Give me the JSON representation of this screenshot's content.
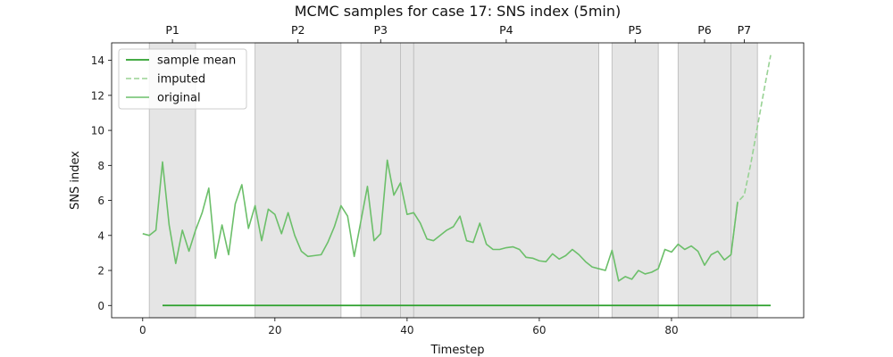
{
  "chart_data": {
    "type": "line",
    "title": "MCMC samples for case 17: SNS index (5min)",
    "xlabel": "Timestep",
    "ylabel": "SNS index",
    "xlim": [
      -4.7,
      100
    ],
    "ylim": [
      -0.7,
      15.0
    ],
    "xticks": [
      0,
      20,
      40,
      60,
      80
    ],
    "yticks": [
      0,
      2,
      4,
      6,
      8,
      10,
      12,
      14
    ],
    "grid": false,
    "legend_position": "top-left",
    "periods": [
      {
        "label": "P1",
        "start": 1,
        "end": 8
      },
      {
        "label": "P2",
        "start": 17,
        "end": 30
      },
      {
        "label": "P3",
        "start": 33,
        "end": 39
      },
      {
        "label": "",
        "start": 39,
        "end": 41
      },
      {
        "label": "P4",
        "start": 41,
        "end": 69
      },
      {
        "label": "P5",
        "start": 71,
        "end": 78
      },
      {
        "label": "P6",
        "start": 81,
        "end": 89
      },
      {
        "label": "P7",
        "start": 89,
        "end": 93
      }
    ],
    "series": [
      {
        "name": "sample mean",
        "style": "solid",
        "color": "#2ca02c",
        "x": [
          3,
          95
        ],
        "values": [
          0.0,
          0.0
        ]
      },
      {
        "name": "imputed",
        "style": "dashed",
        "color": "#98d294",
        "x": [
          89,
          90,
          91,
          92,
          93,
          94,
          95
        ],
        "values": [
          2.9,
          5.9,
          6.3,
          8.1,
          10.2,
          12.3,
          14.3
        ]
      },
      {
        "name": "original",
        "style": "solid",
        "color": "#6cbf6a",
        "x": [
          0,
          1,
          2,
          3,
          4,
          5,
          6,
          7,
          8,
          9,
          10,
          11,
          12,
          13,
          14,
          15,
          16,
          17,
          18,
          19,
          20,
          21,
          22,
          23,
          24,
          25,
          26,
          27,
          28,
          29,
          30,
          31,
          32,
          33,
          34,
          35,
          36,
          37,
          38,
          39,
          40,
          41,
          42,
          43,
          44,
          45,
          46,
          47,
          48,
          49,
          50,
          51,
          52,
          53,
          54,
          55,
          56,
          57,
          58,
          59,
          60,
          61,
          62,
          63,
          64,
          65,
          66,
          67,
          68,
          69,
          70,
          71,
          72,
          73,
          74,
          75,
          76,
          77,
          78,
          79,
          80,
          81,
          82,
          83,
          84,
          85,
          86,
          87,
          88,
          89,
          90
        ],
        "values": [
          4.1,
          4.0,
          4.3,
          8.2,
          4.6,
          2.4,
          4.3,
          3.1,
          4.3,
          5.3,
          6.7,
          2.7,
          4.6,
          2.9,
          5.8,
          6.9,
          4.4,
          5.7,
          3.7,
          5.5,
          5.2,
          4.1,
          5.3,
          4.0,
          3.1,
          2.8,
          2.85,
          2.9,
          3.6,
          4.5,
          5.7,
          5.1,
          2.8,
          4.8,
          6.8,
          3.7,
          4.1,
          8.3,
          6.3,
          7.0,
          5.2,
          5.3,
          4.7,
          3.8,
          3.7,
          4.0,
          4.3,
          4.5,
          5.1,
          3.7,
          3.6,
          4.7,
          3.5,
          3.2,
          3.2,
          3.3,
          3.35,
          3.2,
          2.75,
          2.7,
          2.55,
          2.5,
          2.95,
          2.65,
          2.85,
          3.2,
          2.9,
          2.5,
          2.2,
          2.1,
          2.0,
          3.15,
          1.4,
          1.65,
          1.5,
          2.0,
          1.8,
          1.9,
          2.1,
          3.2,
          3.05,
          3.5,
          3.2,
          3.4,
          3.1,
          2.3,
          2.9,
          3.1,
          2.6,
          2.9,
          5.9
        ]
      }
    ]
  }
}
